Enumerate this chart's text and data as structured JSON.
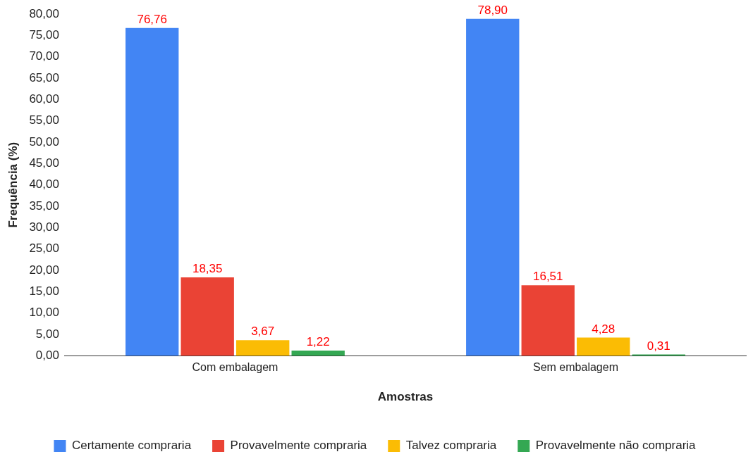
{
  "chart_data": {
    "type": "bar",
    "xlabel": "Amostras",
    "ylabel": "Frequência (%)",
    "categories": [
      "Com embalagem",
      "Sem embalagem"
    ],
    "series": [
      {
        "name": "Certamente compraria",
        "color": "#4285f4",
        "values": [
          76.76,
          78.9
        ],
        "value_labels": [
          "76,76",
          "78,90"
        ]
      },
      {
        "name": "Provavelmente compraria",
        "color": "#ea4335",
        "values": [
          18.35,
          16.51
        ],
        "value_labels": [
          "18,35",
          "16,51"
        ]
      },
      {
        "name": "Talvez compraria",
        "color": "#fbbc04",
        "values": [
          3.67,
          4.28
        ],
        "value_labels": [
          "3,67",
          "4,28"
        ]
      },
      {
        "name": "Provavelmente não compraria",
        "color": "#34a853",
        "values": [
          1.22,
          0.31
        ],
        "value_labels": [
          "1,22",
          "0,31"
        ]
      }
    ],
    "ylim": [
      0,
      80
    ],
    "yticks": [
      {
        "value": 0,
        "label": "0,00"
      },
      {
        "value": 5,
        "label": "5,00"
      },
      {
        "value": 10,
        "label": "10,00"
      },
      {
        "value": 15,
        "label": "15,00"
      },
      {
        "value": 20,
        "label": "20,00"
      },
      {
        "value": 25,
        "label": "25,00"
      },
      {
        "value": 30,
        "label": "30,00"
      },
      {
        "value": 35,
        "label": "35,00"
      },
      {
        "value": 40,
        "label": "40,00"
      },
      {
        "value": 45,
        "label": "45,00"
      },
      {
        "value": 50,
        "label": "50,00"
      },
      {
        "value": 55,
        "label": "55,00"
      },
      {
        "value": 60,
        "label": "60,00"
      },
      {
        "value": 65,
        "label": "65,00"
      },
      {
        "value": 70,
        "label": "70,00"
      },
      {
        "value": 75,
        "label": "75,00"
      },
      {
        "value": 80,
        "label": "80,00"
      }
    ],
    "grid": false,
    "legend": "bottom"
  }
}
